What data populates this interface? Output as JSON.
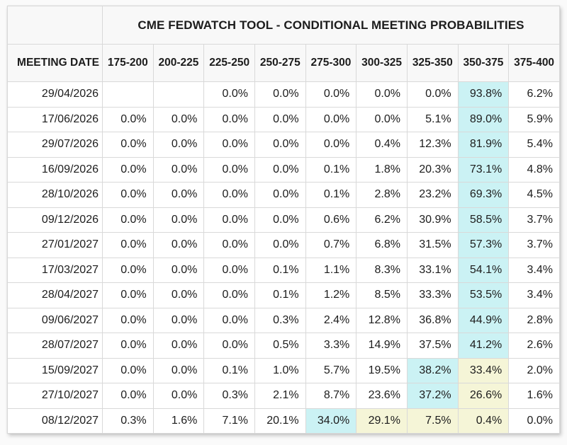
{
  "colors": {
    "highlight_cyan": "#cbf2f4",
    "highlight_yellow": "#f5f5d7",
    "border": "#d9d9d9",
    "header_bg": "#f8f8f8",
    "text": "#1c1c1c"
  },
  "chart_data": {
    "type": "table",
    "title": "CME FEDWATCH TOOL - CONDITIONAL MEETING PROBABILITIES",
    "row_header_label": "MEETING DATE",
    "columns": [
      "175-200",
      "200-225",
      "225-250",
      "250-275",
      "275-300",
      "300-325",
      "325-350",
      "350-375",
      "375-400"
    ],
    "rows": [
      {
        "date": "29/04/2026",
        "values": [
          "",
          "",
          "0.0%",
          "0.0%",
          "0.0%",
          "0.0%",
          "0.0%",
          "93.8%",
          "6.2%"
        ],
        "hl": [
          "",
          "",
          "",
          "",
          "",
          "",
          "",
          "c",
          ""
        ]
      },
      {
        "date": "17/06/2026",
        "values": [
          "0.0%",
          "0.0%",
          "0.0%",
          "0.0%",
          "0.0%",
          "0.0%",
          "5.1%",
          "89.0%",
          "5.9%"
        ],
        "hl": [
          "",
          "",
          "",
          "",
          "",
          "",
          "",
          "c",
          ""
        ]
      },
      {
        "date": "29/07/2026",
        "values": [
          "0.0%",
          "0.0%",
          "0.0%",
          "0.0%",
          "0.0%",
          "0.4%",
          "12.3%",
          "81.9%",
          "5.4%"
        ],
        "hl": [
          "",
          "",
          "",
          "",
          "",
          "",
          "",
          "c",
          ""
        ]
      },
      {
        "date": "16/09/2026",
        "values": [
          "0.0%",
          "0.0%",
          "0.0%",
          "0.0%",
          "0.1%",
          "1.8%",
          "20.3%",
          "73.1%",
          "4.8%"
        ],
        "hl": [
          "",
          "",
          "",
          "",
          "",
          "",
          "",
          "c",
          ""
        ]
      },
      {
        "date": "28/10/2026",
        "values": [
          "0.0%",
          "0.0%",
          "0.0%",
          "0.0%",
          "0.1%",
          "2.8%",
          "23.2%",
          "69.3%",
          "4.5%"
        ],
        "hl": [
          "",
          "",
          "",
          "",
          "",
          "",
          "",
          "c",
          ""
        ]
      },
      {
        "date": "09/12/2026",
        "values": [
          "0.0%",
          "0.0%",
          "0.0%",
          "0.0%",
          "0.6%",
          "6.2%",
          "30.9%",
          "58.5%",
          "3.7%"
        ],
        "hl": [
          "",
          "",
          "",
          "",
          "",
          "",
          "",
          "c",
          ""
        ]
      },
      {
        "date": "27/01/2027",
        "values": [
          "0.0%",
          "0.0%",
          "0.0%",
          "0.0%",
          "0.7%",
          "6.8%",
          "31.5%",
          "57.3%",
          "3.7%"
        ],
        "hl": [
          "",
          "",
          "",
          "",
          "",
          "",
          "",
          "c",
          ""
        ]
      },
      {
        "date": "17/03/2027",
        "values": [
          "0.0%",
          "0.0%",
          "0.0%",
          "0.1%",
          "1.1%",
          "8.3%",
          "33.1%",
          "54.1%",
          "3.4%"
        ],
        "hl": [
          "",
          "",
          "",
          "",
          "",
          "",
          "",
          "c",
          ""
        ]
      },
      {
        "date": "28/04/2027",
        "values": [
          "0.0%",
          "0.0%",
          "0.0%",
          "0.1%",
          "1.2%",
          "8.5%",
          "33.3%",
          "53.5%",
          "3.4%"
        ],
        "hl": [
          "",
          "",
          "",
          "",
          "",
          "",
          "",
          "c",
          ""
        ]
      },
      {
        "date": "09/06/2027",
        "values": [
          "0.0%",
          "0.0%",
          "0.0%",
          "0.3%",
          "2.4%",
          "12.8%",
          "36.8%",
          "44.9%",
          "2.8%"
        ],
        "hl": [
          "",
          "",
          "",
          "",
          "",
          "",
          "",
          "c",
          ""
        ]
      },
      {
        "date": "28/07/2027",
        "values": [
          "0.0%",
          "0.0%",
          "0.0%",
          "0.5%",
          "3.3%",
          "14.9%",
          "37.5%",
          "41.2%",
          "2.6%"
        ],
        "hl": [
          "",
          "",
          "",
          "",
          "",
          "",
          "",
          "c",
          ""
        ]
      },
      {
        "date": "15/09/2027",
        "values": [
          "0.0%",
          "0.0%",
          "0.1%",
          "1.0%",
          "5.7%",
          "19.5%",
          "38.2%",
          "33.4%",
          "2.0%"
        ],
        "hl": [
          "",
          "",
          "",
          "",
          "",
          "",
          "c",
          "y",
          ""
        ]
      },
      {
        "date": "27/10/2027",
        "values": [
          "0.0%",
          "0.0%",
          "0.3%",
          "2.1%",
          "8.7%",
          "23.6%",
          "37.2%",
          "26.6%",
          "1.6%"
        ],
        "hl": [
          "",
          "",
          "",
          "",
          "",
          "",
          "c",
          "y",
          ""
        ]
      },
      {
        "date": "08/12/2027",
        "values": [
          "0.3%",
          "1.6%",
          "7.1%",
          "20.1%",
          "34.0%",
          "29.1%",
          "7.5%",
          "0.4%",
          "0.0%"
        ],
        "hl": [
          "",
          "",
          "",
          "",
          "c",
          "y",
          "y",
          "y",
          ""
        ]
      }
    ]
  }
}
